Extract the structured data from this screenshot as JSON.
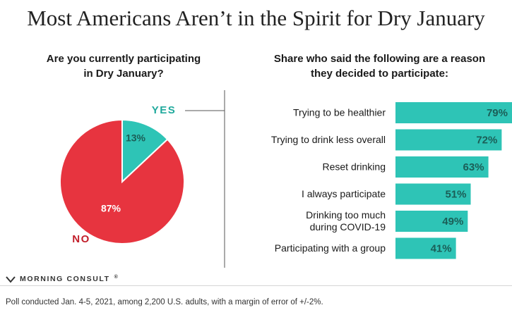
{
  "title": "Most Americans Aren’t in the Spirit for Dry January",
  "brand": "MORNING CONSULT",
  "brand_mark": "®",
  "footnote": "Poll conducted Jan. 4-5, 2021, among 2,200 U.S. adults, with a margin of error of +/-2%.",
  "colors": {
    "red": "#e7343f",
    "teal": "#2ec4b6",
    "teal_text": "#1fa99c",
    "red_text": "#c21f2b"
  },
  "chart_data": [
    {
      "type": "pie",
      "title": "Are you currently participating in Dry January?",
      "title_lines": [
        "Are you currently participating",
        "in Dry January?"
      ],
      "slices": [
        {
          "label": "YES",
          "value": 13,
          "value_label": "13%",
          "color": "#2ec4b6"
        },
        {
          "label": "NO",
          "value": 87,
          "value_label": "87%",
          "color": "#e7343f"
        }
      ]
    },
    {
      "type": "bar",
      "orientation": "horizontal",
      "title": "Share who said the following are a reason they decided to participate:",
      "title_lines": [
        "Share who said the following are a reason",
        "they decided to participate:"
      ],
      "categories": [
        [
          "Trying to be healthier"
        ],
        [
          "Trying to drink less overall"
        ],
        [
          "Reset drinking"
        ],
        [
          "I always participate"
        ],
        [
          "Drinking too much",
          "during COVID-19"
        ],
        [
          "Participating with a group"
        ]
      ],
      "values": [
        79,
        72,
        63,
        51,
        49,
        41
      ],
      "value_labels": [
        "79%",
        "72%",
        "63%",
        "51%",
        "49%",
        "41%"
      ],
      "color": "#2ec4b6"
    }
  ]
}
